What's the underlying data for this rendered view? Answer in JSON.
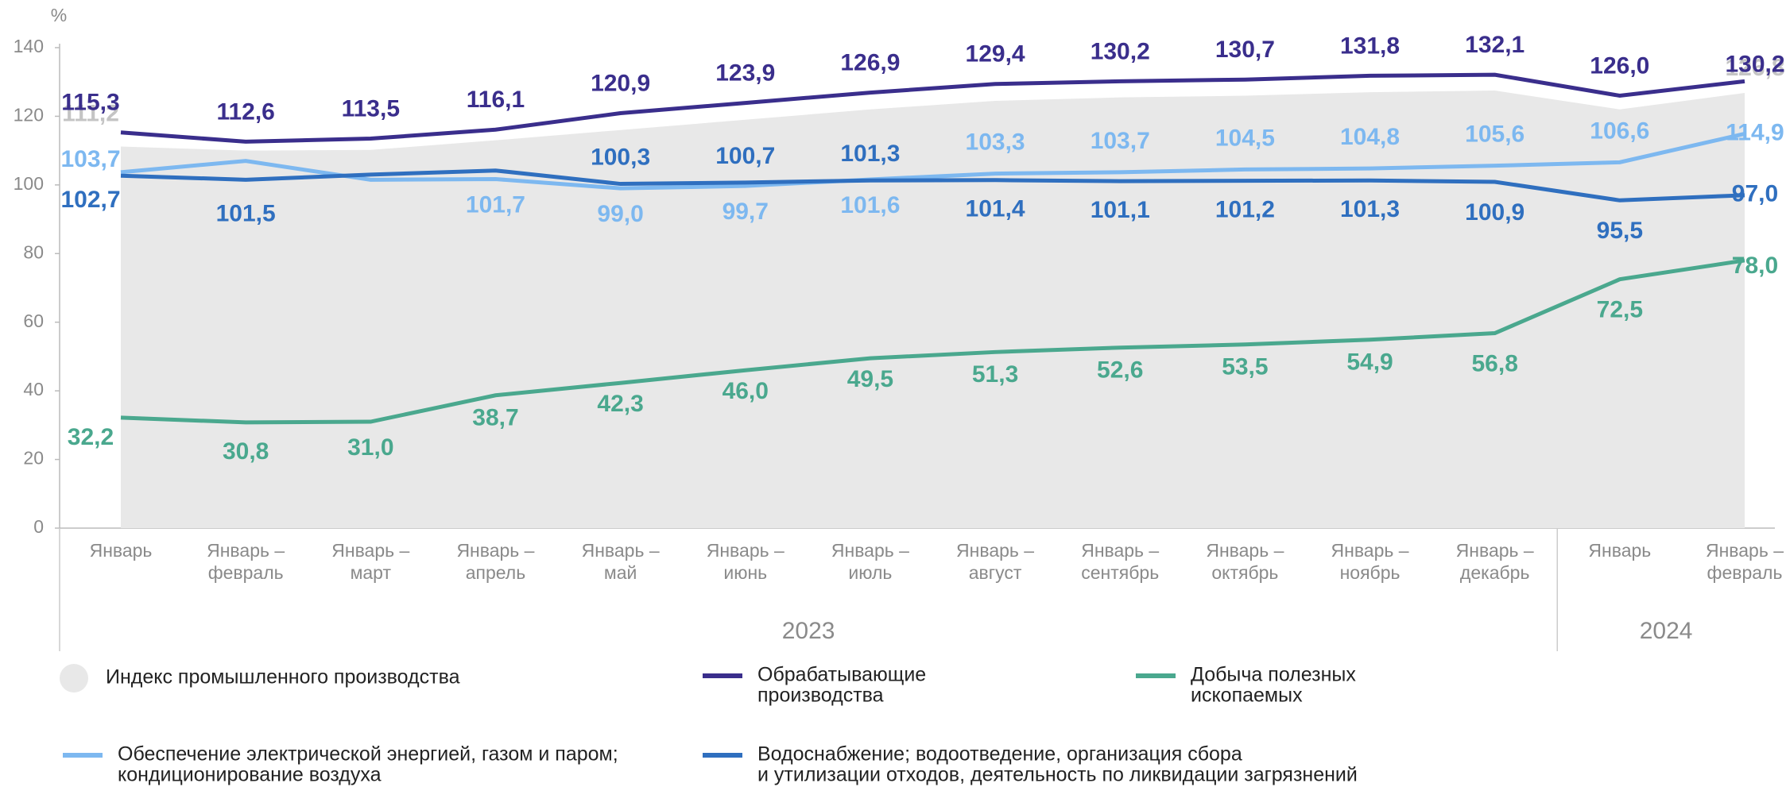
{
  "chart_data": {
    "type": "line",
    "y_unit_label": "%",
    "categories": [
      [
        "Январь"
      ],
      [
        "Январь –",
        "февраль"
      ],
      [
        "Январь –",
        "март"
      ],
      [
        "Январь –",
        "апрель"
      ],
      [
        "Январь –",
        "май"
      ],
      [
        "Январь –",
        "июнь"
      ],
      [
        "Январь –",
        "июль"
      ],
      [
        "Январь –",
        "август"
      ],
      [
        "Январь –",
        "сентябрь"
      ],
      [
        "Январь –",
        "октябрь"
      ],
      [
        "Январь –",
        "ноябрь"
      ],
      [
        "Январь –",
        "декабрь"
      ],
      [
        "Январь"
      ],
      [
        "Январь –",
        "февраль"
      ]
    ],
    "years": [
      {
        "label": "2023",
        "count": 12
      },
      {
        "label": "2024",
        "count": 2
      }
    ],
    "ylim": [
      0,
      140
    ],
    "yticks": [
      0,
      20,
      40,
      60,
      80,
      100,
      120,
      140
    ],
    "grid": false,
    "series": [
      {
        "name": [
          "Индекс промышленного производства"
        ],
        "kind": "area",
        "color": "#e8e8e8",
        "label_color": "#c4c4c4",
        "values": [
          111.2,
          110.0,
          110.2,
          113.0,
          116.0,
          119.0,
          122.0,
          124.5,
          125.5,
          126.0,
          127.0,
          127.5,
          122.0,
          126.8
        ],
        "value_labels": [
          "111,2",
          null,
          null,
          null,
          null,
          null,
          null,
          null,
          null,
          null,
          null,
          null,
          null,
          "126,8"
        ]
      },
      {
        "name": [
          "Обрабатывающие",
          "производства"
        ],
        "color": "#3a2e8c",
        "values": [
          115.3,
          112.6,
          113.5,
          116.1,
          120.9,
          123.9,
          126.9,
          129.4,
          130.2,
          130.7,
          131.8,
          132.1,
          126.0,
          130.2
        ],
        "value_labels": [
          "115,3",
          "112,6",
          "113,5",
          "116,1",
          "120,9",
          "123,9",
          "126,9",
          "129,4",
          "130,2",
          "130,7",
          "131,8",
          "132,1",
          "126,0",
          "130,2"
        ]
      },
      {
        "name": [
          "Добыча полезных",
          "ископаемых"
        ],
        "color": "#4aa88e",
        "values": [
          32.2,
          30.8,
          31.0,
          38.7,
          42.3,
          46.0,
          49.5,
          51.3,
          52.6,
          53.5,
          54.9,
          56.8,
          72.5,
          78.0
        ],
        "value_labels": [
          "32,2",
          "30,8",
          "31,0",
          "38,7",
          "42,3",
          "46,0",
          "49,5",
          "51,3",
          "52,6",
          "53,5",
          "54,9",
          "56,8",
          "72,5",
          "78,0"
        ]
      },
      {
        "name": [
          "Обеспечение электрической энергией, газом и паром;",
          "кондиционирование воздуха"
        ],
        "color": "#7db8f0",
        "values": [
          103.7,
          107.0,
          101.5,
          101.7,
          99.0,
          99.7,
          101.6,
          103.3,
          103.7,
          104.5,
          104.8,
          105.6,
          106.6,
          114.9
        ],
        "value_labels": [
          "103,7",
          null,
          null,
          "101,7",
          "99,0",
          "99,7",
          "101,6",
          "103,3",
          "103,7",
          "104,5",
          "104,8",
          "105,6",
          "106,6",
          "114,9"
        ]
      },
      {
        "name": [
          "Водоснабжение; водоотведение, организация сбора",
          "и утилизации отходов, деятельность по ликвидации загрязнений"
        ],
        "color": "#2f6fbf",
        "values": [
          102.7,
          101.5,
          103.0,
          104.2,
          100.3,
          100.7,
          101.3,
          101.4,
          101.1,
          101.2,
          101.3,
          100.9,
          95.5,
          97.0
        ],
        "value_labels": [
          "102,7",
          "101,5",
          null,
          null,
          "100,3",
          "100,7",
          "101,3",
          "101,4",
          "101,1",
          "101,2",
          "101,3",
          "100,9",
          "95,5",
          "97,0"
        ]
      }
    ]
  }
}
